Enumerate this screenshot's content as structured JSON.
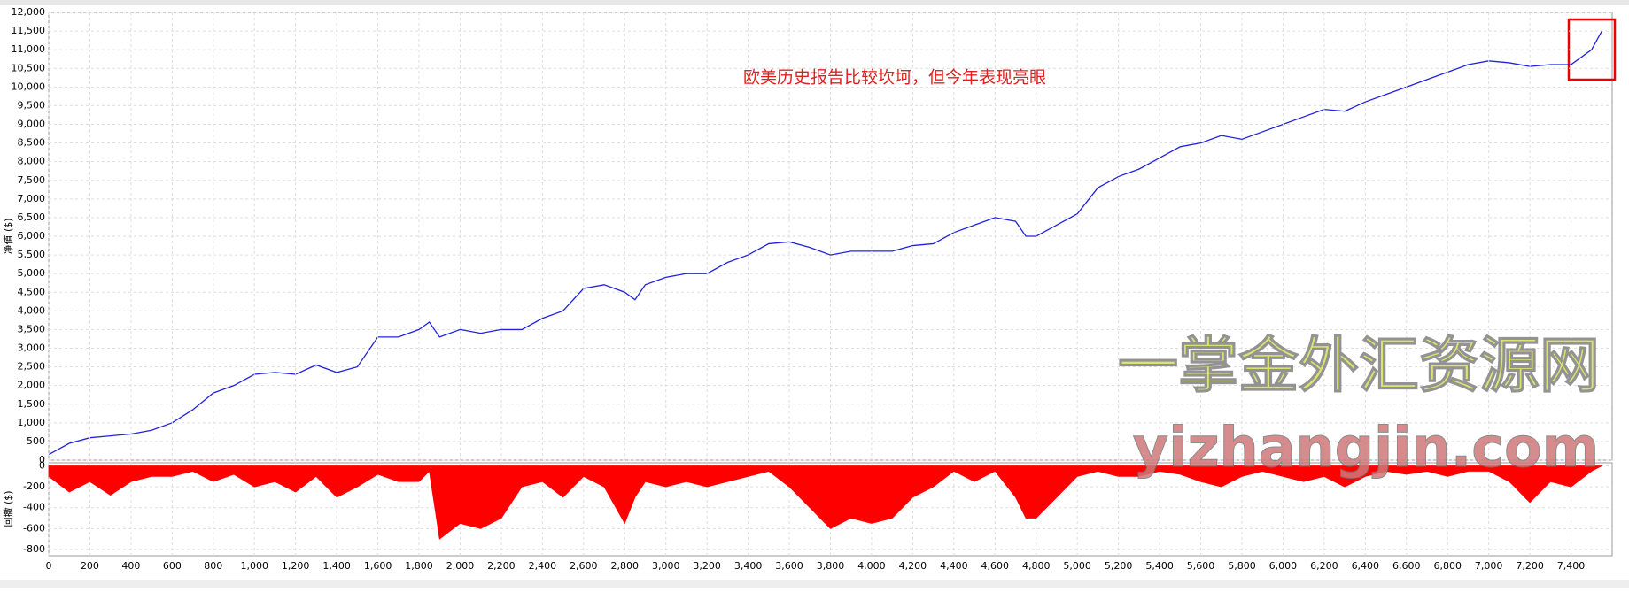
{
  "chart_data": [
    {
      "type": "line",
      "y_label": "净值 ($)",
      "annotation": "欧美历史报告比较坎坷，但今年表现亮眼",
      "watermark": "一掌金外汇资源网",
      "watermark_url": "yizhangjin.com",
      "x": [
        0,
        100,
        200,
        300,
        400,
        500,
        600,
        700,
        800,
        900,
        1000,
        1100,
        1200,
        1300,
        1400,
        1500,
        1600,
        1700,
        1800,
        1850,
        1900,
        2000,
        2100,
        2200,
        2300,
        2400,
        2500,
        2600,
        2700,
        2800,
        2850,
        2900,
        3000,
        3100,
        3200,
        3300,
        3400,
        3500,
        3600,
        3700,
        3800,
        3900,
        4000,
        4100,
        4200,
        4300,
        4400,
        4500,
        4600,
        4700,
        4750,
        4800,
        4900,
        5000,
        5100,
        5200,
        5300,
        5400,
        5500,
        5600,
        5700,
        5800,
        5900,
        6000,
        6100,
        6200,
        6300,
        6400,
        6500,
        6600,
        6700,
        6800,
        6900,
        7000,
        7100,
        7200,
        7300,
        7400,
        7500,
        7550
      ],
      "series": [
        {
          "color": "#2222dd",
          "values": [
            150,
            450,
            600,
            650,
            700,
            800,
            1000,
            1350,
            1800,
            2000,
            2300,
            2350,
            2300,
            2550,
            2350,
            2500,
            3300,
            3300,
            3500,
            3700,
            3300,
            3500,
            3400,
            3500,
            3500,
            3800,
            4000,
            4600,
            4700,
            4500,
            4300,
            4700,
            4900,
            5000,
            5000,
            5300,
            5500,
            5800,
            5850,
            5700,
            5500,
            5600,
            5600,
            5600,
            5750,
            5800,
            6100,
            6300,
            6500,
            6400,
            6000,
            6000,
            6300,
            6600,
            7300,
            7600,
            7800,
            8100,
            8400,
            8500,
            8700,
            8600,
            8800,
            9000,
            9200,
            9400,
            9350,
            9600,
            9800,
            10000,
            10200,
            10400,
            10600,
            10700,
            10650,
            10550,
            10600,
            10600,
            11000,
            11500
          ]
        }
      ],
      "xlim": [
        0,
        7600
      ],
      "ylim": [
        0,
        12000
      ],
      "grid": true,
      "yticks": [
        0,
        500,
        {
          "value": 1000,
          "label": "1,000"
        },
        {
          "value": 1500,
          "label": "1,500"
        },
        {
          "value": 2000,
          "label": "2,000"
        },
        {
          "value": 2500,
          "label": "2,500"
        },
        {
          "value": 3000,
          "label": "3,000"
        },
        {
          "value": 3500,
          "label": "3,500"
        },
        {
          "value": 4000,
          "label": "4,000"
        },
        {
          "value": 4500,
          "label": "4,500"
        },
        {
          "value": 5000,
          "label": "5,000"
        },
        {
          "value": 5500,
          "label": "5,500"
        },
        {
          "value": 6000,
          "label": "6,000"
        },
        {
          "value": 6500,
          "label": "6,500"
        },
        {
          "value": 7000,
          "label": "7,000"
        },
        {
          "value": 7500,
          "label": "7,500"
        },
        {
          "value": 8000,
          "label": "8,000"
        },
        {
          "value": 8500,
          "label": "8,500"
        },
        {
          "value": 9000,
          "label": "9,000"
        },
        {
          "value": 9500,
          "label": "9,500"
        },
        {
          "value": 10000,
          "label": "10,000"
        },
        {
          "value": 10500,
          "label": "10,500"
        },
        {
          "value": 11000,
          "label": "11,000"
        },
        {
          "value": 11500,
          "label": "11,500"
        },
        {
          "value": 12000,
          "label": "12,000"
        }
      ]
    },
    {
      "type": "area",
      "y_label": "回撤 ($)",
      "x": [
        0,
        100,
        200,
        300,
        400,
        500,
        600,
        700,
        800,
        900,
        1000,
        1100,
        1200,
        1300,
        1400,
        1500,
        1600,
        1700,
        1800,
        1850,
        1900,
        2000,
        2100,
        2200,
        2300,
        2400,
        2500,
        2600,
        2700,
        2800,
        2850,
        2900,
        3000,
        3100,
        3200,
        3300,
        3400,
        3500,
        3600,
        3700,
        3800,
        3900,
        4000,
        4100,
        4200,
        4300,
        4400,
        4500,
        4600,
        4700,
        4750,
        4800,
        4900,
        5000,
        5100,
        5200,
        5300,
        5400,
        5500,
        5600,
        5700,
        5800,
        5900,
        6000,
        6100,
        6200,
        6300,
        6400,
        6500,
        6600,
        6700,
        6800,
        6900,
        7000,
        7100,
        7200,
        7300,
        7400,
        7500,
        7550
      ],
      "series": [
        {
          "color": "#ff0000",
          "values": [
            -100,
            -250,
            -150,
            -280,
            -150,
            -100,
            -100,
            -50,
            -150,
            -80,
            -200,
            -150,
            -250,
            -100,
            -300,
            -200,
            -80,
            -150,
            -150,
            -50,
            -700,
            -550,
            -600,
            -500,
            -200,
            -150,
            -300,
            -100,
            -200,
            -550,
            -300,
            -150,
            -200,
            -150,
            -200,
            -150,
            -100,
            -50,
            -200,
            -400,
            -600,
            -500,
            -550,
            -500,
            -300,
            -200,
            -50,
            -150,
            -50,
            -300,
            -500,
            -500,
            -300,
            -100,
            -50,
            -100,
            -100,
            -50,
            -80,
            -150,
            -200,
            -100,
            -50,
            -100,
            -150,
            -100,
            -200,
            -100,
            -50,
            -80,
            -50,
            -100,
            -50,
            -50,
            -150,
            -350,
            -150,
            -200,
            -50,
            0
          ]
        }
      ],
      "xlim": [
        0,
        7600
      ],
      "ylim": [
        -860,
        30
      ],
      "grid": true,
      "yticks": [
        0,
        -200,
        -400,
        -600,
        -800
      ],
      "xticks": [
        0,
        200,
        400,
        600,
        800,
        {
          "value": 1000,
          "label": "1,000"
        },
        {
          "value": 1200,
          "label": "1,200"
        },
        {
          "value": 1400,
          "label": "1,400"
        },
        {
          "value": 1600,
          "label": "1,600"
        },
        {
          "value": 1800,
          "label": "1,800"
        },
        {
          "value": 2000,
          "label": "2,000"
        },
        {
          "value": 2200,
          "label": "2,200"
        },
        {
          "value": 2400,
          "label": "2,400"
        },
        {
          "value": 2600,
          "label": "2,600"
        },
        {
          "value": 2800,
          "label": "2,800"
        },
        {
          "value": 3000,
          "label": "3,000"
        },
        {
          "value": 3200,
          "label": "3,200"
        },
        {
          "value": 3400,
          "label": "3,400"
        },
        {
          "value": 3600,
          "label": "3,600"
        },
        {
          "value": 3800,
          "label": "3,800"
        },
        {
          "value": 4000,
          "label": "4,000"
        },
        {
          "value": 4200,
          "label": "4,200"
        },
        {
          "value": 4400,
          "label": "4,400"
        },
        {
          "value": 4600,
          "label": "4,600"
        },
        {
          "value": 4800,
          "label": "4,800"
        },
        {
          "value": 5000,
          "label": "5,000"
        },
        {
          "value": 5200,
          "label": "5,200"
        },
        {
          "value": 5400,
          "label": "5,400"
        },
        {
          "value": 5600,
          "label": "5,600"
        },
        {
          "value": 5800,
          "label": "5,800"
        },
        {
          "value": 6000,
          "label": "6,000"
        },
        {
          "value": 6200,
          "label": "6,200"
        },
        {
          "value": 6400,
          "label": "6,400"
        },
        {
          "value": 6600,
          "label": "6,600"
        },
        {
          "value": 6800,
          "label": "6,800"
        },
        {
          "value": 7000,
          "label": "7,000"
        },
        {
          "value": 7200,
          "label": "7,200"
        },
        {
          "value": 7400,
          "label": "7,400"
        }
      ]
    }
  ]
}
